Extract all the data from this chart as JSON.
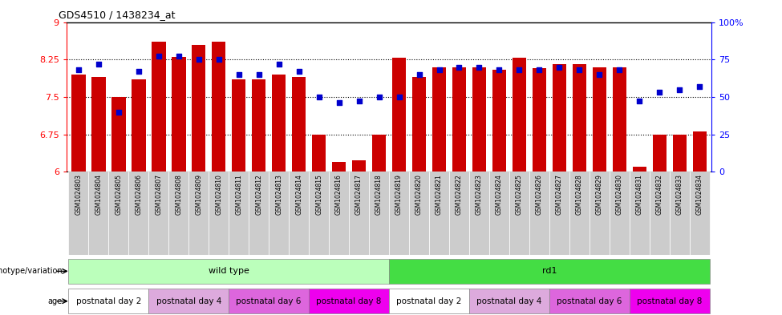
{
  "title": "GDS4510 / 1438234_at",
  "samples": [
    "GSM1024803",
    "GSM1024804",
    "GSM1024805",
    "GSM1024806",
    "GSM1024807",
    "GSM1024808",
    "GSM1024809",
    "GSM1024810",
    "GSM1024811",
    "GSM1024812",
    "GSM1024813",
    "GSM1024814",
    "GSM1024815",
    "GSM1024816",
    "GSM1024817",
    "GSM1024818",
    "GSM1024819",
    "GSM1024820",
    "GSM1024821",
    "GSM1024822",
    "GSM1024823",
    "GSM1024824",
    "GSM1024825",
    "GSM1024826",
    "GSM1024827",
    "GSM1024828",
    "GSM1024829",
    "GSM1024830",
    "GSM1024831",
    "GSM1024832",
    "GSM1024833",
    "GSM1024834"
  ],
  "transformed_count": [
    7.95,
    7.9,
    7.5,
    7.85,
    8.6,
    8.3,
    8.55,
    8.6,
    7.85,
    7.85,
    7.95,
    7.9,
    6.75,
    6.2,
    6.22,
    6.75,
    8.28,
    7.9,
    8.1,
    8.1,
    8.1,
    8.05,
    8.28,
    8.08,
    8.15,
    8.15,
    8.1,
    8.1,
    6.1,
    6.75,
    6.75,
    6.8
  ],
  "percentile_rank": [
    68,
    72,
    40,
    67,
    77,
    77,
    75,
    75,
    65,
    65,
    72,
    67,
    50,
    46,
    47,
    50,
    50,
    65,
    68,
    70,
    70,
    68,
    68,
    68,
    70,
    68,
    65,
    68,
    47,
    53,
    55,
    57
  ],
  "ylim": [
    6,
    9
  ],
  "yticks_left": [
    6,
    6.75,
    7.5,
    8.25,
    9
  ],
  "yticks_right": [
    0,
    25,
    50,
    75,
    100
  ],
  "bar_color": "#cc0000",
  "dot_color": "#0000cc",
  "hline_color": "#000000",
  "spine_color": "#000000",
  "bg_color": "#ffffff",
  "xticklabel_bg": "#dddddd",
  "genotype_groups": [
    {
      "label": "wild type",
      "start": 0,
      "end": 15,
      "color": "#bbffbb"
    },
    {
      "label": "rd1",
      "start": 16,
      "end": 31,
      "color": "#44dd44"
    }
  ],
  "age_groups": [
    {
      "label": "postnatal day 2",
      "start": 0,
      "end": 3,
      "color": "#ffffff"
    },
    {
      "label": "postnatal day 4",
      "start": 4,
      "end": 7,
      "color": "#ddaadd"
    },
    {
      "label": "postnatal day 6",
      "start": 8,
      "end": 11,
      "color": "#ee88ee"
    },
    {
      "label": "postnatal day 8",
      "start": 12,
      "end": 15,
      "color": "#ff44ff"
    },
    {
      "label": "postnatal day 2",
      "start": 16,
      "end": 19,
      "color": "#ffffff"
    },
    {
      "label": "postnatal day 4",
      "start": 20,
      "end": 23,
      "color": "#ddaadd"
    },
    {
      "label": "postnatal day 6",
      "start": 24,
      "end": 27,
      "color": "#ee88ee"
    },
    {
      "label": "postnatal day 8",
      "start": 28,
      "end": 31,
      "color": "#ff44ff"
    }
  ]
}
